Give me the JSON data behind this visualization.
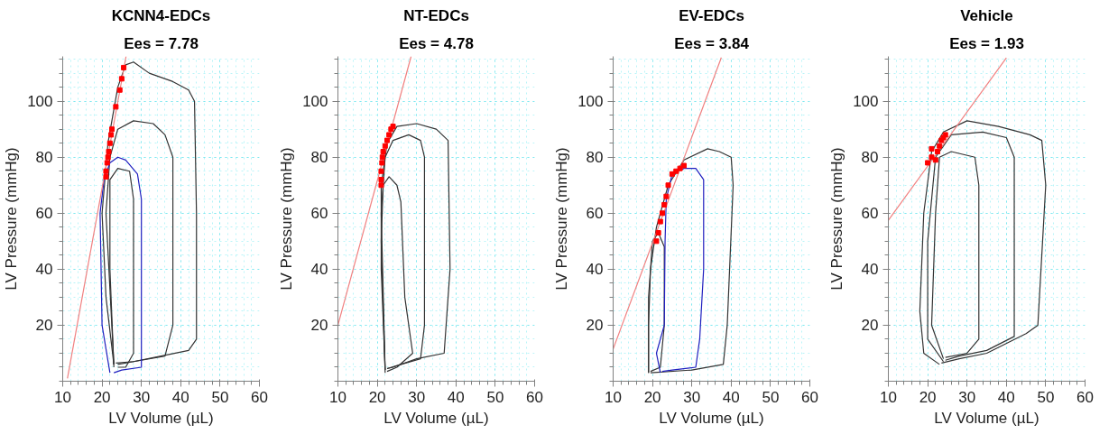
{
  "chart_data": [
    {
      "type": "line",
      "title": "KCNN4-EDCs",
      "subtitle": "Ees = 7.78",
      "xlabel": "LV Volume (µL)",
      "ylabel": "LV Pressure (mmHg)",
      "xlim": [
        10,
        60
      ],
      "ylim": [
        0,
        116
      ],
      "xticks": [
        10,
        20,
        30,
        40,
        50,
        60
      ],
      "yticks": [
        20,
        40,
        60,
        80,
        100
      ],
      "grid": true,
      "line_style": "solid",
      "series": [
        {
          "color": "#333333",
          "x": [
            23,
            21,
            20,
            21.5,
            24,
            26,
            28,
            32,
            38,
            42,
            43.5,
            44,
            44,
            42,
            35,
            28,
            23.5
          ],
          "values": [
            6,
            30,
            60,
            85,
            105,
            113,
            114,
            110,
            107,
            104,
            100,
            60,
            15,
            11,
            9,
            7,
            6.5
          ]
        },
        {
          "color": "#333333",
          "x": [
            23,
            21,
            22,
            24,
            28,
            33,
            36,
            38,
            38,
            36,
            28,
            24
          ],
          "values": [
            6,
            60,
            80,
            90,
            93,
            92,
            88,
            80,
            20,
            9,
            7,
            6
          ]
        },
        {
          "color": "#333333",
          "x": [
            23,
            22,
            22,
            24,
            27,
            28,
            28,
            26,
            24
          ],
          "values": [
            5,
            40,
            72,
            76,
            75,
            65,
            10,
            5,
            5
          ]
        },
        {
          "color": "#1f1fbf",
          "x": [
            22,
            20,
            19.5,
            20.5,
            22,
            24,
            26,
            29,
            30,
            30,
            30,
            25,
            23
          ],
          "values": [
            3,
            20,
            60,
            72,
            78,
            80,
            79,
            74,
            65,
            20,
            5,
            4,
            3
          ]
        },
        {
          "color": "#f08080",
          "x": [
            11.2,
            26.1
          ],
          "values": [
            1,
            116
          ]
        },
        {
          "type": "scatter",
          "marker": "square",
          "color": "#ff0000",
          "x": [
            21,
            21,
            21.3,
            21.5,
            21.7,
            22,
            22.3,
            22.5,
            23.5,
            24.5,
            25,
            25.5
          ],
          "values": [
            73,
            75,
            78,
            80,
            82,
            85,
            88,
            90,
            98,
            104,
            108,
            112
          ]
        }
      ]
    },
    {
      "type": "line",
      "title": "NT-EDCs",
      "subtitle": "Ees = 4.78",
      "xlabel": "LV Volume (µL)",
      "ylabel": "LV Pressure (mmHg)",
      "xlim": [
        10,
        60
      ],
      "ylim": [
        0,
        116
      ],
      "xticks": [
        10,
        20,
        30,
        40,
        50,
        60
      ],
      "yticks": [
        20,
        40,
        60,
        80,
        100
      ],
      "grid": true,
      "line_style": "solid",
      "series": [
        {
          "color": "#333333",
          "x": [
            22,
            21,
            21,
            22.5,
            25,
            30,
            35,
            38,
            38.5,
            37,
            30,
            24,
            22.5
          ],
          "values": [
            4,
            40,
            70,
            85,
            91,
            92,
            90,
            86,
            40,
            10,
            8,
            5,
            4.5
          ]
        },
        {
          "color": "#333333",
          "x": [
            22,
            21,
            22,
            24,
            28,
            31,
            32,
            32,
            31,
            26,
            22.5
          ],
          "values": [
            4,
            60,
            80,
            86,
            88,
            86,
            80,
            20,
            8,
            6,
            4.5
          ]
        },
        {
          "color": "#333333",
          "x": [
            22,
            21,
            21.5,
            23,
            25,
            26,
            27,
            29,
            25,
            22.5
          ],
          "values": [
            3,
            50,
            70,
            73,
            70,
            64,
            30,
            10,
            5,
            3.5
          ]
        },
        {
          "color": "#f08080",
          "x": [
            10,
            28.6
          ],
          "values": [
            20,
            116
          ]
        },
        {
          "type": "scatter",
          "marker": "square",
          "color": "#ff0000",
          "x": [
            21,
            21,
            21,
            21.2,
            21.3,
            21.5,
            22,
            22.5,
            23,
            23.5,
            24
          ],
          "values": [
            70,
            72,
            75,
            78,
            80,
            82,
            84,
            86,
            88,
            90,
            91
          ]
        }
      ]
    },
    {
      "type": "line",
      "title": "EV-EDCs",
      "subtitle": "Ees = 3.84",
      "xlabel": "LV Volume (µL)",
      "ylabel": "LV Pressure (mmHg)",
      "xlim": [
        10,
        60
      ],
      "ylim": [
        0,
        116
      ],
      "xticks": [
        10,
        20,
        30,
        40,
        50,
        60
      ],
      "yticks": [
        20,
        40,
        60,
        80,
        100
      ],
      "grid": true,
      "line_style": "solid",
      "series": [
        {
          "color": "#333333",
          "x": [
            19,
            19,
            19.5,
            21,
            24,
            28,
            34,
            37,
            40,
            40.5,
            39,
            38,
            30,
            19.5
          ],
          "values": [
            3,
            20,
            40,
            55,
            70,
            79,
            83,
            82,
            80,
            70,
            20,
            6,
            4,
            3
          ]
        },
        {
          "color": "#333333",
          "x": [
            19,
            19,
            20,
            21.5,
            23,
            23,
            22,
            19.5
          ],
          "values": [
            3,
            30,
            50,
            53,
            48,
            20,
            5,
            3.5
          ]
        },
        {
          "color": "#1f1fbf",
          "x": [
            22,
            21,
            23,
            23.2,
            23.5,
            25,
            28,
            31,
            33,
            33,
            32,
            31,
            25,
            22.5
          ],
          "values": [
            3,
            10,
            20,
            50,
            65,
            74,
            76,
            76,
            72,
            40,
            15,
            5,
            4,
            3.5
          ]
        },
        {
          "color": "#f08080",
          "x": [
            10,
            37.5
          ],
          "values": [
            11.5,
            115.6
          ]
        },
        {
          "type": "scatter",
          "marker": "square",
          "color": "#ff0000",
          "x": [
            21,
            21.5,
            22,
            22.5,
            23,
            23.5,
            24,
            25,
            26,
            27,
            28
          ],
          "values": [
            50,
            53,
            57,
            60,
            63,
            66,
            70,
            74,
            75,
            76,
            77
          ]
        }
      ]
    },
    {
      "type": "line",
      "title": "Vehicle",
      "subtitle": "Ees = 1.93",
      "xlabel": "LV Volume (µL)",
      "ylabel": "LV Pressure (mmHg)",
      "xlim": [
        10,
        60
      ],
      "ylim": [
        0,
        116
      ],
      "xticks": [
        10,
        20,
        30,
        40,
        50,
        60
      ],
      "yticks": [
        20,
        40,
        60,
        80,
        100
      ],
      "grid": true,
      "line_style": "solid",
      "series": [
        {
          "color": "#333333",
          "x": [
            23,
            19,
            18,
            19,
            21,
            24,
            30,
            38,
            46,
            49,
            50,
            48,
            45,
            35,
            28,
            23.5
          ],
          "values": [
            6,
            10,
            25,
            60,
            82,
            89,
            93,
            91,
            88,
            86,
            70,
            20,
            17,
            10,
            8,
            6.5
          ]
        },
        {
          "color": "#333333",
          "x": [
            24,
            20,
            20,
            22,
            26,
            34,
            40,
            42,
            42,
            35,
            28,
            24.5
          ],
          "values": [
            7,
            15,
            50,
            80,
            88,
            89,
            87,
            80,
            16,
            11,
            9,
            7.5
          ]
        },
        {
          "color": "#333333",
          "x": [
            24,
            21,
            22,
            23,
            26,
            32,
            33,
            33,
            30,
            24.5
          ],
          "values": [
            8,
            20,
            60,
            80,
            82,
            80,
            70,
            15,
            10,
            8.5
          ]
        },
        {
          "color": "#f08080",
          "x": [
            10,
            40
          ],
          "values": [
            57.5,
            115.5
          ]
        },
        {
          "type": "scatter",
          "marker": "square",
          "color": "#ff0000",
          "x": [
            20,
            21,
            21,
            22,
            22.5,
            23,
            23.5,
            24,
            24.5
          ],
          "values": [
            78,
            80,
            83,
            79,
            82,
            84,
            86,
            87,
            88
          ]
        }
      ]
    }
  ]
}
